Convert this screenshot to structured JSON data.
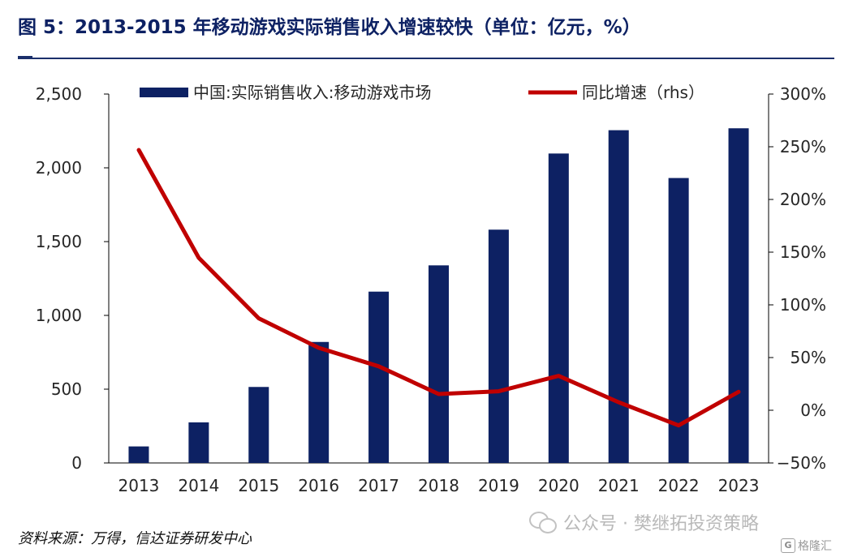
{
  "figure": {
    "title": "图 5：2013-2015 年移动游戏实际销售收入增速较快（单位：亿元，%）",
    "source": "资料来源：万得，信达证券研发中心"
  },
  "watermark": {
    "text": "公众号 · 樊继拓投资策略",
    "icon": "wechat-icon",
    "corner_text": "格隆汇",
    "corner_icon": "G"
  },
  "colors": {
    "bar": "#0d2163",
    "line": "#c00000",
    "axis": "#000000",
    "tick_text": "#262626",
    "title": "#0d2163"
  },
  "chart_data": {
    "type": "bar",
    "categories": [
      "2013",
      "2014",
      "2015",
      "2016",
      "2017",
      "2018",
      "2019",
      "2020",
      "2021",
      "2022",
      "2023"
    ],
    "series": [
      {
        "name": "中国:实际销售收入:移动游戏市场",
        "type": "bar",
        "axis": "left",
        "values": [
          112,
          275,
          515,
          820,
          1161,
          1339,
          1581,
          2097,
          2255,
          1931,
          2268
        ]
      },
      {
        "name": "同比增速（rhs）",
        "type": "line",
        "axis": "right",
        "values": [
          246.9,
          144.6,
          87.2,
          59.2,
          41.7,
          15.4,
          18.0,
          32.6,
          7.6,
          -14.4,
          17.5
        ]
      }
    ],
    "y_left": {
      "ylim": [
        0,
        2500
      ],
      "ticks": [
        0,
        500,
        1000,
        1500,
        2000,
        2500
      ],
      "tick_labels": [
        "0",
        "500",
        "1,000",
        "1,500",
        "2,000",
        "2,500"
      ]
    },
    "y_right": {
      "ylim": [
        -50,
        300
      ],
      "ticks": [
        -50,
        0,
        50,
        100,
        150,
        200,
        250,
        300
      ],
      "tick_labels": [
        "−50%",
        "0%",
        "50%",
        "100%",
        "150%",
        "200%",
        "250%",
        "300%"
      ]
    },
    "legend_position": "top",
    "grid": false
  }
}
